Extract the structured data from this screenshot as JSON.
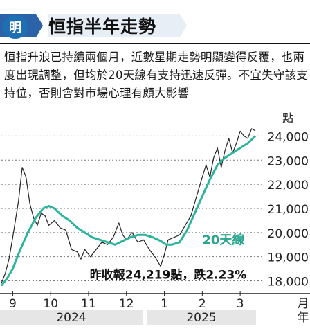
{
  "header": {
    "logo_text": "明",
    "title": "恒指半年走勢"
  },
  "description": "恒指升浪已持續兩個月，近數星期走勢明顯變得反覆，也兩度出現調整，但均於20天線有支持迅速反彈。不宜失守該支持位，否則會對市場心理有頗大影響",
  "colors": {
    "header_band": "#2a63a8",
    "logo": "#1f6fb5",
    "price_line": "#222222",
    "ma_line": "#2bb39b",
    "ma_label": "#2aa68f",
    "year_band": "#e6e6e6"
  },
  "chart_data": {
    "type": "line",
    "title": "",
    "y_unit_label": "點",
    "ylim": [
      17700,
      24700
    ],
    "y_ticks": [
      18000,
      19000,
      20000,
      21000,
      22000,
      23000,
      24000
    ],
    "y_tick_labels": [
      "18,000",
      "19,000",
      "20,000",
      "21,000",
      "22,000",
      "23,000",
      "24,000"
    ],
    "grid": "horizontal-dashed",
    "x_tick_labels": [
      "9",
      "10",
      "11",
      "12",
      "1",
      "2",
      "3"
    ],
    "x_unit_label": "月",
    "year_labels": [
      "2024",
      "2025"
    ],
    "x_unit_year_label": "年",
    "month_positions": [
      0.3,
      1.3,
      2.3,
      3.3,
      4.3,
      5.3,
      6.3
    ],
    "xlim": [
      0,
      6.9
    ],
    "series": [
      {
        "name": "",
        "style": "price",
        "x": [
          0.0,
          0.1,
          0.2,
          0.3,
          0.45,
          0.55,
          0.65,
          0.75,
          0.85,
          0.95,
          1.05,
          1.15,
          1.25,
          1.4,
          1.55,
          1.7,
          1.85,
          2.0,
          2.1,
          2.2,
          2.35,
          2.5,
          2.65,
          2.8,
          2.95,
          3.1,
          3.2,
          3.3,
          3.45,
          3.6,
          3.75,
          3.9,
          4.05,
          4.2,
          4.3,
          4.4,
          4.55,
          4.7,
          4.85,
          5.0,
          5.15,
          5.3,
          5.4,
          5.5,
          5.6,
          5.7,
          5.8,
          5.9,
          6.0,
          6.1,
          6.2,
          6.3,
          6.4,
          6.5,
          6.6,
          6.7
        ],
        "values": [
          17900,
          18300,
          18900,
          19800,
          21300,
          22700,
          22300,
          21200,
          20600,
          20300,
          20800,
          20700,
          20300,
          20500,
          20200,
          20100,
          19300,
          19200,
          18900,
          19300,
          19000,
          19300,
          19600,
          19500,
          19800,
          20400,
          19900,
          19700,
          20000,
          19600,
          19700,
          19300,
          19000,
          18600,
          19100,
          19700,
          19800,
          19900,
          20300,
          20700,
          21500,
          22300,
          22800,
          22300,
          23100,
          23500,
          22700,
          23400,
          23900,
          23300,
          23700,
          24200,
          24000,
          23900,
          24300,
          24219
        ]
      },
      {
        "name": "20天線",
        "style": "ma",
        "x": [
          0.0,
          0.15,
          0.3,
          0.5,
          0.7,
          0.9,
          1.1,
          1.25,
          1.4,
          1.6,
          1.8,
          2.0,
          2.2,
          2.4,
          2.6,
          2.8,
          3.0,
          3.2,
          3.4,
          3.6,
          3.8,
          4.0,
          4.2,
          4.35,
          4.5,
          4.7,
          4.9,
          5.1,
          5.3,
          5.5,
          5.7,
          5.9,
          6.1,
          6.3,
          6.5,
          6.7
        ],
        "values": [
          17800,
          18100,
          18500,
          19300,
          20000,
          20600,
          21000,
          21100,
          21000,
          20700,
          20500,
          20200,
          20000,
          19800,
          19700,
          19600,
          19500,
          19650,
          19800,
          19900,
          19900,
          19800,
          19650,
          19500,
          19500,
          19600,
          20100,
          20800,
          21500,
          22200,
          22800,
          23100,
          23300,
          23500,
          23700,
          24000
        ]
      }
    ],
    "annotations": [
      {
        "text": "20天線",
        "x": 5.3,
        "y": 19700,
        "series": "20天線"
      },
      {
        "text": "昨收報24,219點，跌2.23%",
        "x": 4.4,
        "y": 18200
      }
    ]
  }
}
